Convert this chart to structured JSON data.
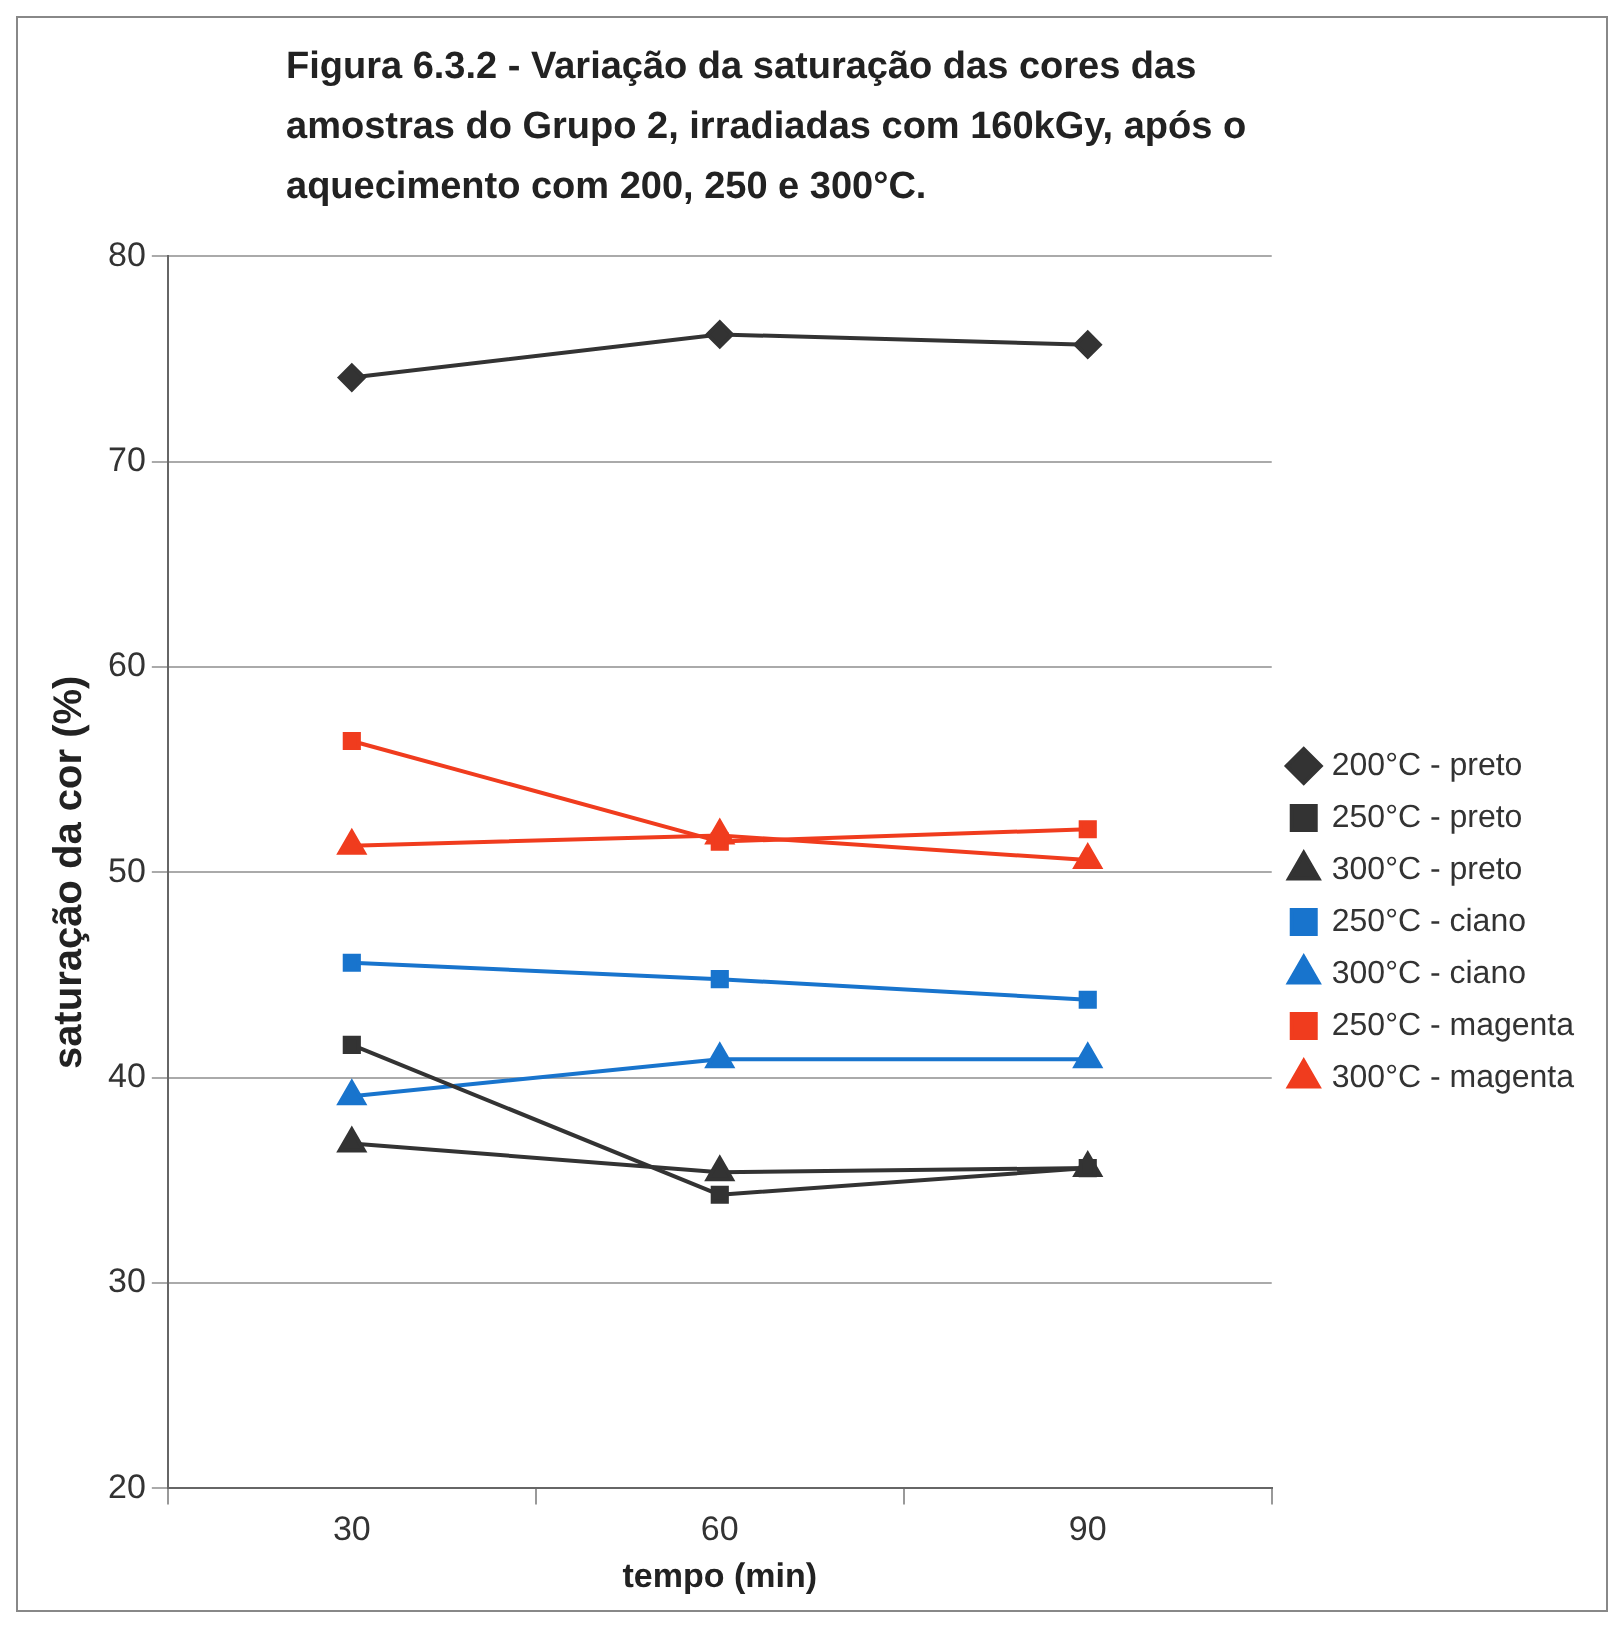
{
  "chart_data": {
    "type": "line",
    "title": "Figura 6.3.2 -  Variação da saturação das cores das amostras do Grupo 2, irradiadas com 160kGy, após o aquecimento com 200, 250 e 300°C.",
    "xlabel": "tempo (min)",
    "ylabel": "saturação da cor (%)",
    "categories": [
      "30",
      "60",
      "90"
    ],
    "ylim": [
      20,
      80
    ],
    "yticks": [
      20,
      30,
      40,
      50,
      60,
      70,
      80
    ],
    "grid": "y",
    "legend": "right",
    "series": [
      {
        "name": "200°C - preto",
        "color": "#333333",
        "marker": "diamond",
        "values": [
          74.1,
          76.2,
          75.7
        ]
      },
      {
        "name": "250°C - preto",
        "color": "#333333",
        "marker": "square",
        "values": [
          41.6,
          34.3,
          35.6
        ]
      },
      {
        "name": "300°C - preto",
        "color": "#333333",
        "marker": "triangle",
        "values": [
          36.8,
          35.4,
          35.6
        ]
      },
      {
        "name": "250°C - ciano",
        "color": "#1874cd",
        "marker": "square",
        "values": [
          45.6,
          44.8,
          43.8
        ]
      },
      {
        "name": "300°C - ciano",
        "color": "#1874cd",
        "marker": "triangle",
        "values": [
          39.1,
          40.9,
          40.9
        ]
      },
      {
        "name": "250°C - magenta",
        "color": "#f03c1e",
        "marker": "square",
        "values": [
          56.4,
          51.5,
          52.1
        ]
      },
      {
        "name": "300°C - magenta",
        "color": "#f03c1e",
        "marker": "triangle",
        "values": [
          51.3,
          51.8,
          50.6
        ]
      }
    ]
  }
}
